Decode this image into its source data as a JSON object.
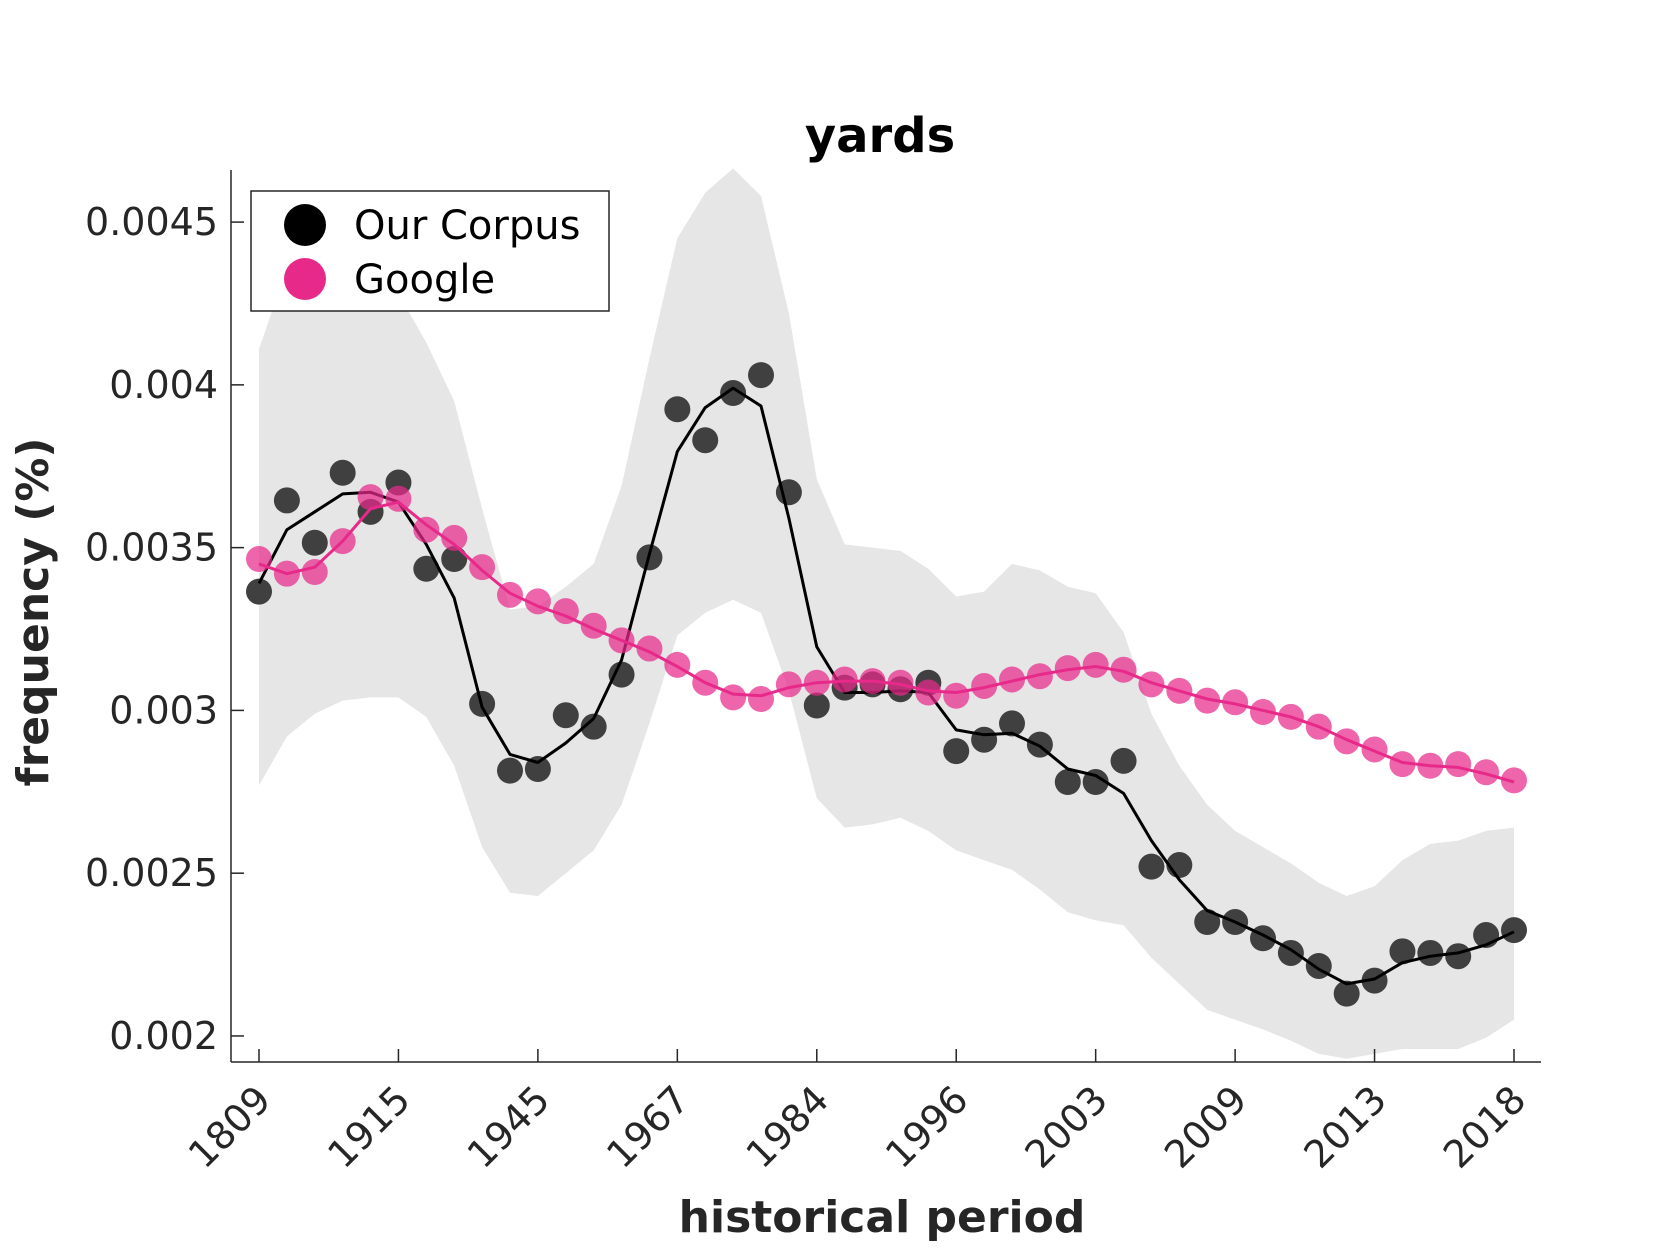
{
  "chart_data": {
    "type": "line",
    "title": "yards",
    "xlabel": "historical period",
    "ylabel": "frequency (%)",
    "x_tick_labels": [
      "1809",
      "1915",
      "1945",
      "1967",
      "1984",
      "1996",
      "2003",
      "2009",
      "2013",
      "2018"
    ],
    "y_ticks": [
      0.002,
      0.0025,
      0.003,
      0.0035,
      0.004,
      0.0045
    ],
    "y_tick_labels": [
      "0.002",
      "0.0025",
      "0.003",
      "0.0035",
      "0.004",
      "0.0045"
    ],
    "ylim": [
      0.00192,
      0.00466
    ],
    "point_count": 46,
    "legend": {
      "placement": "top-left",
      "entries": [
        "Our Corpus",
        "Google"
      ]
    },
    "colors": {
      "corpus": "#000000",
      "corpus_points": "#404040",
      "google": "#e7298a",
      "band": "#e6e6e6"
    },
    "series": [
      {
        "name": "Our Corpus",
        "points": [
          0.003365,
          0.003645,
          0.003515,
          0.00373,
          0.00361,
          0.0037,
          0.003435,
          0.003465,
          0.00302,
          0.002815,
          0.00282,
          0.002985,
          0.00295,
          0.00311,
          0.00347,
          0.003925,
          0.00383,
          0.003975,
          0.00403,
          0.00367,
          0.003015,
          0.00307,
          0.00308,
          0.003065,
          0.003085,
          0.002875,
          0.00291,
          0.00296,
          0.002895,
          0.00278,
          0.00278,
          0.002845,
          0.00252,
          0.002525,
          0.00235,
          0.00235,
          0.0023,
          0.002255,
          0.002215,
          0.00213,
          0.00217,
          0.00226,
          0.002255,
          0.002245,
          0.00231,
          0.002325
        ],
        "trend": [
          0.00339,
          0.003555,
          0.00361,
          0.003665,
          0.00367,
          0.00364,
          0.00351,
          0.003345,
          0.00301,
          0.002865,
          0.00284,
          0.0029,
          0.002975,
          0.003155,
          0.00348,
          0.003795,
          0.00393,
          0.00399,
          0.003935,
          0.00359,
          0.003195,
          0.003055,
          0.003055,
          0.00306,
          0.003055,
          0.00294,
          0.002925,
          0.00293,
          0.00289,
          0.00282,
          0.0028,
          0.002745,
          0.0026,
          0.00248,
          0.002385,
          0.00235,
          0.00231,
          0.002265,
          0.002205,
          0.00216,
          0.002175,
          0.002225,
          0.002245,
          0.002255,
          0.00228,
          0.00232
        ],
        "band_upper": [
          0.00411,
          0.00436,
          0.00437,
          0.00437,
          0.00436,
          0.00428,
          0.00413,
          0.00395,
          0.00362,
          0.00331,
          0.00332,
          0.00338,
          0.00345,
          0.00369,
          0.00408,
          0.00445,
          0.00459,
          0.004665,
          0.00458,
          0.00422,
          0.00371,
          0.00351,
          0.0035,
          0.00349,
          0.003435,
          0.00335,
          0.003365,
          0.00345,
          0.00343,
          0.00338,
          0.00336,
          0.00324,
          0.00299,
          0.00283,
          0.00271,
          0.00263,
          0.00258,
          0.00253,
          0.00247,
          0.00243,
          0.00246,
          0.00254,
          0.00259,
          0.0026,
          0.00263,
          0.00264
        ],
        "band_lower": [
          0.00277,
          0.00292,
          0.00299,
          0.00303,
          0.00304,
          0.00304,
          0.00298,
          0.00283,
          0.00258,
          0.00244,
          0.00243,
          0.0025,
          0.00257,
          0.00271,
          0.00296,
          0.00323,
          0.0033,
          0.00334,
          0.0033,
          0.00306,
          0.00273,
          0.00264,
          0.00265,
          0.00267,
          0.00263,
          0.00257,
          0.00254,
          0.00251,
          0.00245,
          0.00238,
          0.002355,
          0.00234,
          0.00224,
          0.00216,
          0.00208,
          0.00205,
          0.00202,
          0.001985,
          0.001945,
          0.00193,
          0.001945,
          0.00196,
          0.00196,
          0.00196,
          0.001995,
          0.00205
        ]
      },
      {
        "name": "Google",
        "points": [
          0.003465,
          0.00342,
          0.003425,
          0.00352,
          0.003655,
          0.00365,
          0.003555,
          0.00353,
          0.00344,
          0.003355,
          0.003335,
          0.003305,
          0.00326,
          0.003215,
          0.00319,
          0.00314,
          0.003085,
          0.00304,
          0.003035,
          0.00308,
          0.003085,
          0.003095,
          0.00309,
          0.003085,
          0.003055,
          0.003045,
          0.003075,
          0.003095,
          0.003105,
          0.00313,
          0.00314,
          0.003125,
          0.00308,
          0.00306,
          0.00303,
          0.003025,
          0.002995,
          0.00298,
          0.00295,
          0.002905,
          0.00288,
          0.002835,
          0.00283,
          0.002835,
          0.00281,
          0.002785
        ],
        "trend": [
          0.00345,
          0.00342,
          0.00344,
          0.00352,
          0.00362,
          0.00364,
          0.00357,
          0.00351,
          0.00343,
          0.00336,
          0.00332,
          0.00329,
          0.00325,
          0.003215,
          0.00318,
          0.003135,
          0.003085,
          0.00305,
          0.003045,
          0.00307,
          0.003085,
          0.00309,
          0.00309,
          0.00308,
          0.00306,
          0.003055,
          0.00307,
          0.00309,
          0.00311,
          0.003125,
          0.003135,
          0.00312,
          0.003085,
          0.00306,
          0.003035,
          0.00302,
          0.003,
          0.00298,
          0.00295,
          0.00291,
          0.002875,
          0.00284,
          0.00283,
          0.002825,
          0.002805,
          0.00278
        ]
      }
    ]
  }
}
